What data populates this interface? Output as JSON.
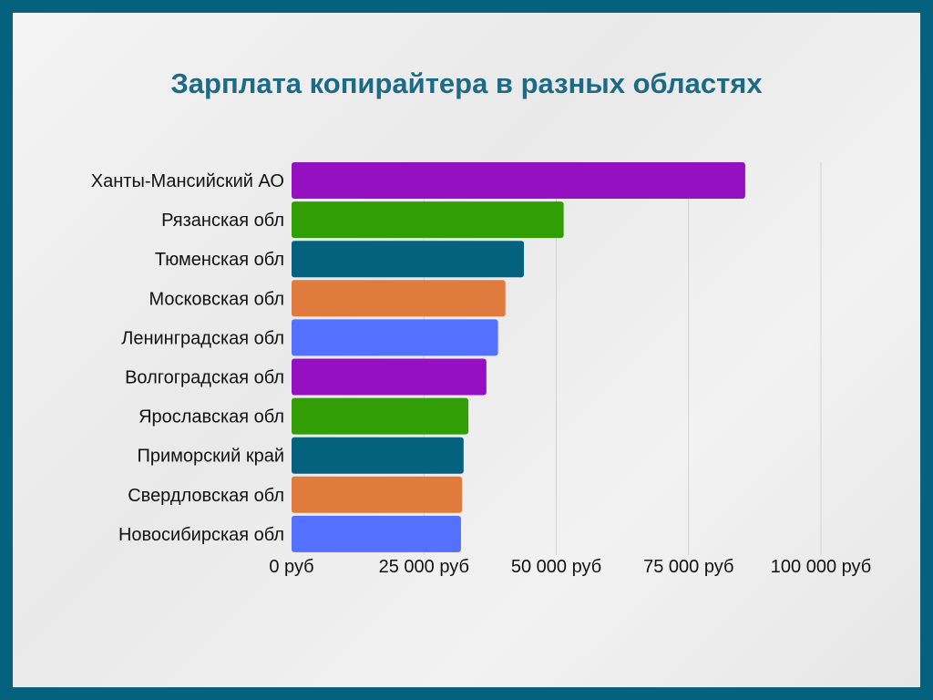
{
  "chart_data": {
    "type": "bar",
    "orientation": "horizontal",
    "title": "Зарплата копирайтера в разных областях",
    "categories": [
      "Ханты-Мансийский АО",
      "Рязанская обл",
      "Тюменская обл",
      "Московская  обл",
      "Ленинградская обл",
      "Волгоградская обл",
      "Ярославская обл",
      "Приморский край",
      "Свердловская обл",
      "Новосибирская обл"
    ],
    "values": [
      85700,
      51400,
      43900,
      40400,
      39000,
      36800,
      33400,
      32500,
      32200,
      32000
    ],
    "colors": [
      "#9510c0",
      "#319e06",
      "#04627f",
      "#e07b3e",
      "#5470ff",
      "#9510c0",
      "#319e06",
      "#04627f",
      "#e07b3e",
      "#5470ff"
    ],
    "xlim": [
      0,
      100000
    ],
    "ticks": [
      0,
      25000,
      50000,
      75000,
      100000
    ],
    "tick_labels": [
      "0 руб",
      "25 000 руб",
      "50 000 руб",
      "75 000 руб",
      "100 000 руб"
    ],
    "grid": true,
    "xlabel": "",
    "ylabel": ""
  }
}
